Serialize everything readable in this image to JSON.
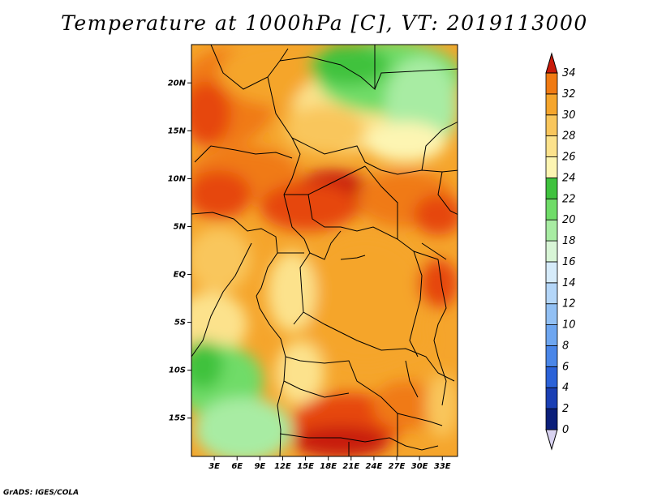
{
  "title": "Temperature at 1000hPa [C], VT: 2019113000",
  "footer": "GrADS: IGES/COLA",
  "map": {
    "lon_ticks": [
      "3E",
      "6E",
      "9E",
      "12E",
      "15E",
      "18E",
      "21E",
      "24E",
      "27E",
      "30E",
      "33E"
    ],
    "lat_ticks": [
      "20N",
      "15N",
      "10N",
      "5N",
      "EQ",
      "5S",
      "10S",
      "15S"
    ],
    "extent": {
      "lon_min": 0,
      "lon_max": 35,
      "lat_min": -19,
      "lat_max": 24
    }
  },
  "colorbar": {
    "levels": [
      "0",
      "2",
      "4",
      "6",
      "8",
      "10",
      "12",
      "14",
      "16",
      "18",
      "20",
      "22",
      "24",
      "26",
      "28",
      "30",
      "32",
      "34"
    ],
    "colors": [
      "#0b1f7a",
      "#1a3fb4",
      "#2b62d8",
      "#4a86e8",
      "#6ea6f0",
      "#92c0f4",
      "#b4d6f8",
      "#d6ebfa",
      "#d8f5d6",
      "#a8eca3",
      "#6fdc68",
      "#3fc23e",
      "#fdf5b2",
      "#fce28c",
      "#f9c65c",
      "#f5a52c",
      "#f07a12",
      "#e6460c",
      "#c81a0a"
    ],
    "low_arrow": "#d8d2f0",
    "high_arrow": "#c81a0a"
  }
}
